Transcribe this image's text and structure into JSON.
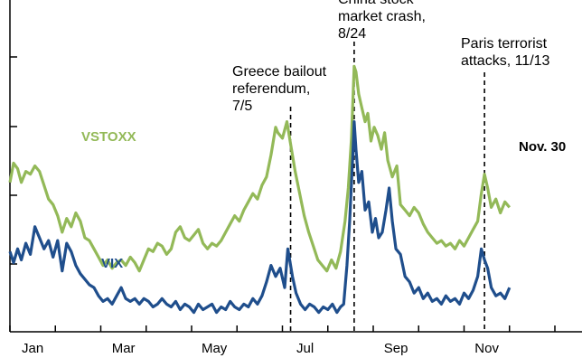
{
  "chart_data": {
    "type": "line",
    "title": "",
    "xlabel": "",
    "ylabel": "",
    "xlim": [
      0,
      12
    ],
    "ylim": [
      0,
      60
    ],
    "x_ticks": [
      "Jan",
      "Mar",
      "May",
      "Jul",
      "Sep",
      "Nov"
    ],
    "grid": false,
    "colors": {
      "VSTOXX": "#93b958",
      "VIX": "#1f4e8c",
      "axis": "#000000"
    },
    "series": [
      {
        "name": "VSTOXX",
        "points": [
          [
            0.0,
            27.0
          ],
          [
            0.08,
            30.5
          ],
          [
            0.17,
            29.5
          ],
          [
            0.25,
            27.0
          ],
          [
            0.35,
            29.0
          ],
          [
            0.45,
            28.5
          ],
          [
            0.55,
            30.0
          ],
          [
            0.65,
            29.0
          ],
          [
            0.75,
            26.5
          ],
          [
            0.85,
            24.0
          ],
          [
            0.95,
            23.0
          ],
          [
            1.05,
            21.0
          ],
          [
            1.15,
            18.0
          ],
          [
            1.25,
            20.5
          ],
          [
            1.35,
            19.0
          ],
          [
            1.45,
            21.5
          ],
          [
            1.55,
            20.0
          ],
          [
            1.65,
            17.0
          ],
          [
            1.75,
            16.5
          ],
          [
            1.85,
            15.0
          ],
          [
            1.95,
            13.5
          ],
          [
            2.05,
            12.0
          ],
          [
            2.15,
            13.0
          ],
          [
            2.25,
            11.5
          ],
          [
            2.35,
            12.5
          ],
          [
            2.45,
            13.0
          ],
          [
            2.55,
            12.0
          ],
          [
            2.65,
            13.5
          ],
          [
            2.75,
            12.5
          ],
          [
            2.85,
            11.0
          ],
          [
            2.95,
            13.0
          ],
          [
            3.05,
            15.0
          ],
          [
            3.15,
            14.5
          ],
          [
            3.25,
            16.0
          ],
          [
            3.35,
            15.5
          ],
          [
            3.45,
            14.0
          ],
          [
            3.55,
            15.0
          ],
          [
            3.65,
            18.0
          ],
          [
            3.75,
            19.0
          ],
          [
            3.85,
            17.0
          ],
          [
            3.95,
            16.5
          ],
          [
            4.05,
            17.5
          ],
          [
            4.15,
            18.5
          ],
          [
            4.25,
            16.0
          ],
          [
            4.35,
            15.0
          ],
          [
            4.45,
            16.0
          ],
          [
            4.55,
            15.5
          ],
          [
            4.65,
            16.5
          ],
          [
            4.75,
            18.0
          ],
          [
            4.85,
            19.5
          ],
          [
            4.95,
            21.0
          ],
          [
            5.05,
            20.0
          ],
          [
            5.15,
            22.0
          ],
          [
            5.25,
            23.5
          ],
          [
            5.35,
            25.0
          ],
          [
            5.45,
            24.0
          ],
          [
            5.55,
            26.5
          ],
          [
            5.65,
            28.0
          ],
          [
            5.75,
            32.0
          ],
          [
            5.85,
            37.0
          ],
          [
            5.9,
            36.0
          ],
          [
            6.0,
            35.0
          ],
          [
            6.1,
            38.0
          ],
          [
            6.18,
            34.0
          ],
          [
            6.28,
            29.0
          ],
          [
            6.38,
            25.0
          ],
          [
            6.48,
            21.0
          ],
          [
            6.58,
            18.0
          ],
          [
            6.68,
            15.5
          ],
          [
            6.78,
            13.0
          ],
          [
            6.88,
            12.0
          ],
          [
            6.98,
            11.0
          ],
          [
            7.08,
            13.0
          ],
          [
            7.18,
            11.5
          ],
          [
            7.28,
            14.5
          ],
          [
            7.38,
            20.0
          ],
          [
            7.45,
            26.0
          ],
          [
            7.52,
            35.0
          ],
          [
            7.58,
            48.0
          ],
          [
            7.62,
            47.0
          ],
          [
            7.68,
            43.0
          ],
          [
            7.75,
            40.5
          ],
          [
            7.82,
            38.0
          ],
          [
            7.88,
            39.5
          ],
          [
            7.95,
            34.5
          ],
          [
            8.02,
            37.0
          ],
          [
            8.1,
            35.5
          ],
          [
            8.18,
            33.0
          ],
          [
            8.25,
            36.0
          ],
          [
            8.32,
            31.0
          ],
          [
            8.42,
            28.0
          ],
          [
            8.52,
            30.0
          ],
          [
            8.6,
            23.0
          ],
          [
            8.7,
            22.0
          ],
          [
            8.8,
            21.0
          ],
          [
            8.9,
            22.5
          ],
          [
            9.0,
            21.5
          ],
          [
            9.1,
            19.5
          ],
          [
            9.2,
            18.0
          ],
          [
            9.3,
            17.0
          ],
          [
            9.4,
            16.0
          ],
          [
            9.5,
            16.5
          ],
          [
            9.6,
            15.5
          ],
          [
            9.7,
            16.0
          ],
          [
            9.8,
            15.0
          ],
          [
            9.9,
            16.5
          ],
          [
            10.0,
            15.5
          ],
          [
            10.1,
            17.0
          ],
          [
            10.2,
            18.5
          ],
          [
            10.3,
            20.0
          ],
          [
            10.38,
            25.0
          ],
          [
            10.45,
            28.5
          ],
          [
            10.52,
            26.0
          ],
          [
            10.6,
            22.5
          ],
          [
            10.7,
            24.0
          ],
          [
            10.8,
            21.5
          ],
          [
            10.9,
            23.5
          ],
          [
            11.0,
            22.5
          ]
        ]
      },
      {
        "name": "VIX",
        "points": [
          [
            0.0,
            14.5
          ],
          [
            0.08,
            12.5
          ],
          [
            0.17,
            15.0
          ],
          [
            0.25,
            13.0
          ],
          [
            0.35,
            16.0
          ],
          [
            0.45,
            14.0
          ],
          [
            0.55,
            19.0
          ],
          [
            0.65,
            17.0
          ],
          [
            0.75,
            15.0
          ],
          [
            0.85,
            16.5
          ],
          [
            0.95,
            13.5
          ],
          [
            1.05,
            16.5
          ],
          [
            1.15,
            11.0
          ],
          [
            1.25,
            16.0
          ],
          [
            1.35,
            14.5
          ],
          [
            1.45,
            12.0
          ],
          [
            1.55,
            10.5
          ],
          [
            1.65,
            9.5
          ],
          [
            1.75,
            8.5
          ],
          [
            1.85,
            8.0
          ],
          [
            1.95,
            6.5
          ],
          [
            2.05,
            5.5
          ],
          [
            2.15,
            6.0
          ],
          [
            2.25,
            5.0
          ],
          [
            2.35,
            6.5
          ],
          [
            2.45,
            8.0
          ],
          [
            2.55,
            6.0
          ],
          [
            2.65,
            5.5
          ],
          [
            2.75,
            6.0
          ],
          [
            2.85,
            5.0
          ],
          [
            2.95,
            6.0
          ],
          [
            3.05,
            5.5
          ],
          [
            3.15,
            4.5
          ],
          [
            3.25,
            5.0
          ],
          [
            3.35,
            6.0
          ],
          [
            3.45,
            5.0
          ],
          [
            3.55,
            4.5
          ],
          [
            3.65,
            5.5
          ],
          [
            3.75,
            4.0
          ],
          [
            3.85,
            5.0
          ],
          [
            3.95,
            4.5
          ],
          [
            4.05,
            3.5
          ],
          [
            4.15,
            5.0
          ],
          [
            4.25,
            4.0
          ],
          [
            4.35,
            4.5
          ],
          [
            4.45,
            5.0
          ],
          [
            4.55,
            3.5
          ],
          [
            4.65,
            4.5
          ],
          [
            4.75,
            4.0
          ],
          [
            4.85,
            5.5
          ],
          [
            4.95,
            4.5
          ],
          [
            5.05,
            4.0
          ],
          [
            5.15,
            5.0
          ],
          [
            5.25,
            4.5
          ],
          [
            5.35,
            6.0
          ],
          [
            5.45,
            5.0
          ],
          [
            5.55,
            6.5
          ],
          [
            5.65,
            9.0
          ],
          [
            5.75,
            12.0
          ],
          [
            5.85,
            10.0
          ],
          [
            5.95,
            11.5
          ],
          [
            6.05,
            8.0
          ],
          [
            6.12,
            15.0
          ],
          [
            6.22,
            10.0
          ],
          [
            6.3,
            7.0
          ],
          [
            6.4,
            5.0
          ],
          [
            6.5,
            4.0
          ],
          [
            6.6,
            5.0
          ],
          [
            6.7,
            4.5
          ],
          [
            6.8,
            3.5
          ],
          [
            6.9,
            4.5
          ],
          [
            7.0,
            4.0
          ],
          [
            7.1,
            5.0
          ],
          [
            7.2,
            3.5
          ],
          [
            7.28,
            4.5
          ],
          [
            7.35,
            5.0
          ],
          [
            7.42,
            12.0
          ],
          [
            7.48,
            20.0
          ],
          [
            7.55,
            32.0
          ],
          [
            7.58,
            38.0
          ],
          [
            7.62,
            33.0
          ],
          [
            7.68,
            27.0
          ],
          [
            7.75,
            29.0
          ],
          [
            7.82,
            22.0
          ],
          [
            7.9,
            23.5
          ],
          [
            7.98,
            18.0
          ],
          [
            8.05,
            20.5
          ],
          [
            8.12,
            17.0
          ],
          [
            8.2,
            18.0
          ],
          [
            8.28,
            22.0
          ],
          [
            8.35,
            26.0
          ],
          [
            8.42,
            20.0
          ],
          [
            8.5,
            15.0
          ],
          [
            8.6,
            14.0
          ],
          [
            8.7,
            10.0
          ],
          [
            8.8,
            9.0
          ],
          [
            8.9,
            7.0
          ],
          [
            9.0,
            8.0
          ],
          [
            9.1,
            6.0
          ],
          [
            9.2,
            7.0
          ],
          [
            9.3,
            5.5
          ],
          [
            9.4,
            6.0
          ],
          [
            9.5,
            5.0
          ],
          [
            9.6,
            6.5
          ],
          [
            9.7,
            5.5
          ],
          [
            9.8,
            6.0
          ],
          [
            9.9,
            5.0
          ],
          [
            10.0,
            7.0
          ],
          [
            10.1,
            6.0
          ],
          [
            10.2,
            7.5
          ],
          [
            10.3,
            10.0
          ],
          [
            10.38,
            15.0
          ],
          [
            10.45,
            13.0
          ],
          [
            10.52,
            11.5
          ],
          [
            10.6,
            8.0
          ],
          [
            10.7,
            6.5
          ],
          [
            10.8,
            7.0
          ],
          [
            10.9,
            6.0
          ],
          [
            11.0,
            8.0
          ]
        ]
      }
    ],
    "annotations": [
      {
        "x": 6.18,
        "lines": [
          "Greece bailout",
          "referendum,",
          "7/5"
        ]
      },
      {
        "x": 7.58,
        "lines": [
          "China stock",
          "market crash,",
          "8/24"
        ]
      },
      {
        "x": 10.45,
        "lines": [
          "Paris terrorist",
          "attacks, 11/13"
        ]
      }
    ],
    "series_labels": {
      "VSTOXX": "VSTOXX",
      "VIX": "VIX"
    },
    "end_label": "Nov. 30"
  }
}
